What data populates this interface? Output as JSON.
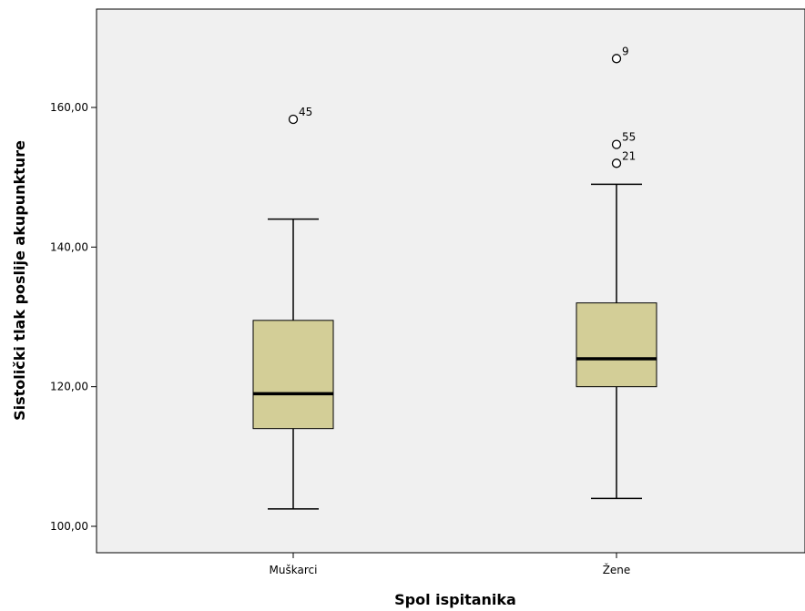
{
  "chart_data": {
    "type": "boxplot",
    "xlabel": "Spol ispitanika",
    "ylabel": "Sistolički tlak poslije akupunkture",
    "ylim": [
      96,
      175
    ],
    "yticks": [
      {
        "value": 100,
        "label": "100,00"
      },
      {
        "value": 120,
        "label": "120,00"
      },
      {
        "value": 140,
        "label": "140,00"
      },
      {
        "value": 160,
        "label": "160,00"
      }
    ],
    "categories": [
      "Muškarci",
      "Žene"
    ],
    "boxes": [
      {
        "category": "Muškarci",
        "whisker_low": 102.5,
        "q1": 114,
        "median": 119,
        "q3": 129.5,
        "whisker_high": 144,
        "outliers": [
          {
            "value": 158.3,
            "label": "45"
          }
        ]
      },
      {
        "category": "Žene",
        "whisker_low": 104,
        "q1": 120,
        "median": 124,
        "q3": 132,
        "whisker_high": 149,
        "outliers": [
          {
            "value": 167,
            "label": "9"
          },
          {
            "value": 154.7,
            "label": "55"
          },
          {
            "value": 152,
            "label": "21"
          }
        ]
      }
    ],
    "colors": {
      "plot_background": "#f0f0f0",
      "box_fill": "#d3ce97",
      "line": "#000000"
    },
    "grid": false,
    "legend": "none"
  }
}
